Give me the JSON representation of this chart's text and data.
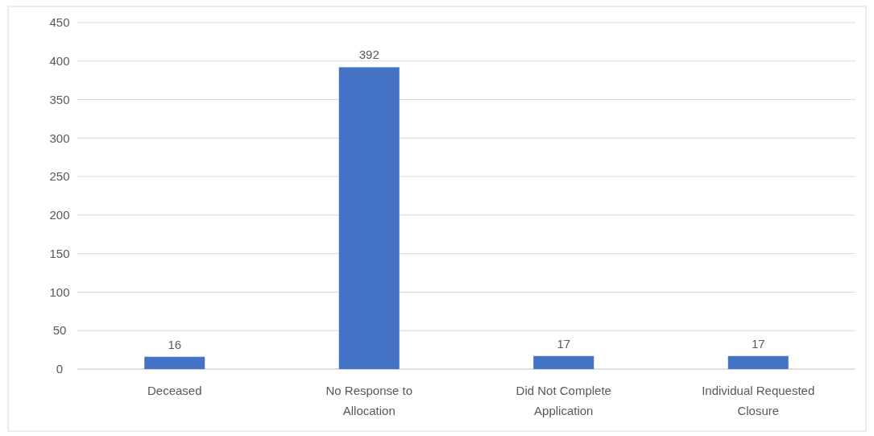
{
  "chart_data": {
    "type": "bar",
    "categories": [
      "Deceased",
      "No Response to Allocation",
      "Did Not Complete Application",
      "Individual Requested Closure"
    ],
    "values": [
      16,
      392,
      17,
      17
    ],
    "color": "#4472c4",
    "ylim": [
      0,
      450
    ],
    "yticks": [
      0,
      50,
      100,
      150,
      200,
      250,
      300,
      350,
      400,
      450
    ],
    "grid": "y",
    "data_labels": true
  }
}
